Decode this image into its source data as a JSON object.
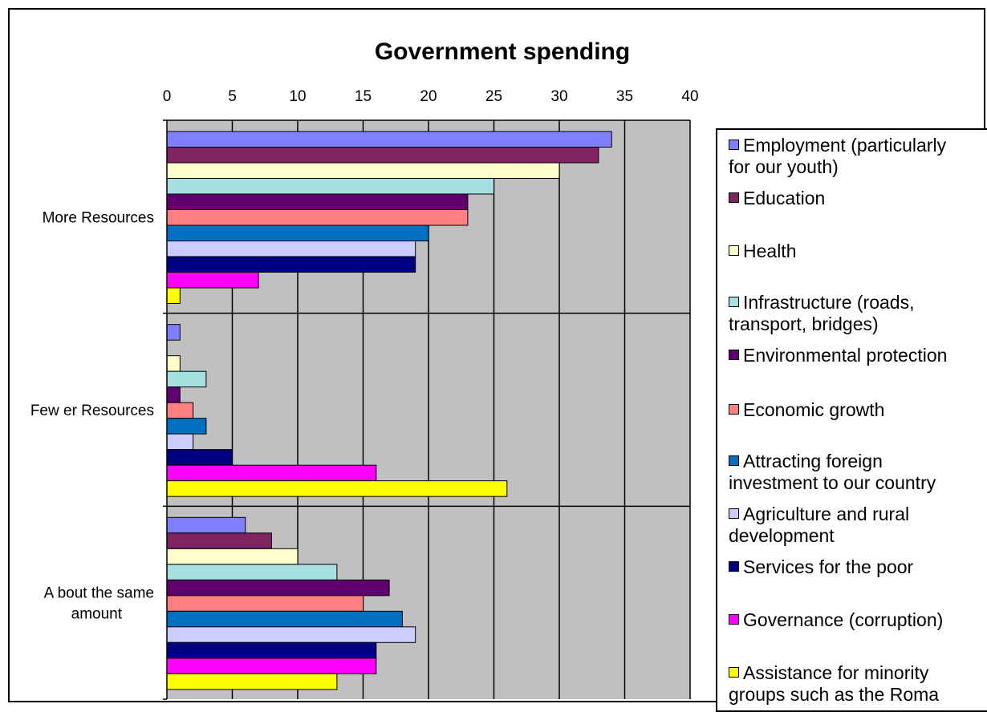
{
  "chart_data": {
    "type": "bar",
    "orientation": "horizontal",
    "title": "Government spending",
    "xlabel": "",
    "ylabel": "",
    "xlim": [
      0,
      40
    ],
    "xticks": [
      "0",
      "5",
      "10",
      "15",
      "20",
      "25",
      "30",
      "35",
      "40"
    ],
    "categories": [
      "More Resources",
      "Few er Resources",
      "A bout the same amount"
    ],
    "category_lines": [
      [
        "More Resources"
      ],
      [
        "Few er Resources"
      ],
      [
        "A bout the same",
        "amount"
      ]
    ],
    "grid": true,
    "legend_position": "right",
    "series": [
      {
        "name": "Employment (particularly for our youth)",
        "legend_lines": [
          "Employment (particularly",
          "for our youth)"
        ],
        "color": "#8080FF",
        "values": [
          34,
          1,
          6
        ]
      },
      {
        "name": "Education",
        "legend_lines": [
          "Education"
        ],
        "color": "#7F2460",
        "values": [
          33,
          0,
          8
        ]
      },
      {
        "name": "Health",
        "legend_lines": [
          "Health"
        ],
        "color": "#FFFFCC",
        "values": [
          30,
          1,
          10
        ]
      },
      {
        "name": "Infrastructure (roads, transport, bridges)",
        "legend_lines": [
          "Infrastructure (roads,",
          "transport, bridges)"
        ],
        "color": "#A6E0E0",
        "values": [
          25,
          3,
          13
        ]
      },
      {
        "name": "Environmental protection",
        "legend_lines": [
          "Environmental protection"
        ],
        "color": "#600070",
        "values": [
          23,
          1,
          17
        ]
      },
      {
        "name": "Economic growth",
        "legend_lines": [
          "Economic growth"
        ],
        "color": "#FF8080",
        "values": [
          23,
          2,
          15
        ]
      },
      {
        "name": "Attracting foreign investment to our country",
        "legend_lines": [
          "Attracting foreign",
          "investment to our country"
        ],
        "color": "#0070C0",
        "values": [
          20,
          3,
          18
        ]
      },
      {
        "name": "Agriculture and rural development",
        "legend_lines": [
          "Agriculture and rural",
          "development"
        ],
        "color": "#CCCCFF",
        "values": [
          19,
          2,
          19
        ]
      },
      {
        "name": "Services for the poor",
        "legend_lines": [
          "Services for the poor"
        ],
        "color": "#000080",
        "values": [
          19,
          5,
          16
        ]
      },
      {
        "name": "Governance (corruption)",
        "legend_lines": [
          "Governance (corruption)"
        ],
        "color": "#FF00FF",
        "values": [
          7,
          16,
          16
        ]
      },
      {
        "name": "Assistance for minority groups such as the Roma",
        "legend_lines": [
          "Assistance for minority",
          "groups such as the Roma"
        ],
        "color": "#FFFF00",
        "values": [
          1,
          26,
          13
        ]
      }
    ]
  },
  "colors": {
    "plot_background": "#C0C0C0",
    "gridline": "#000000",
    "bar_outline": "#000000"
  }
}
